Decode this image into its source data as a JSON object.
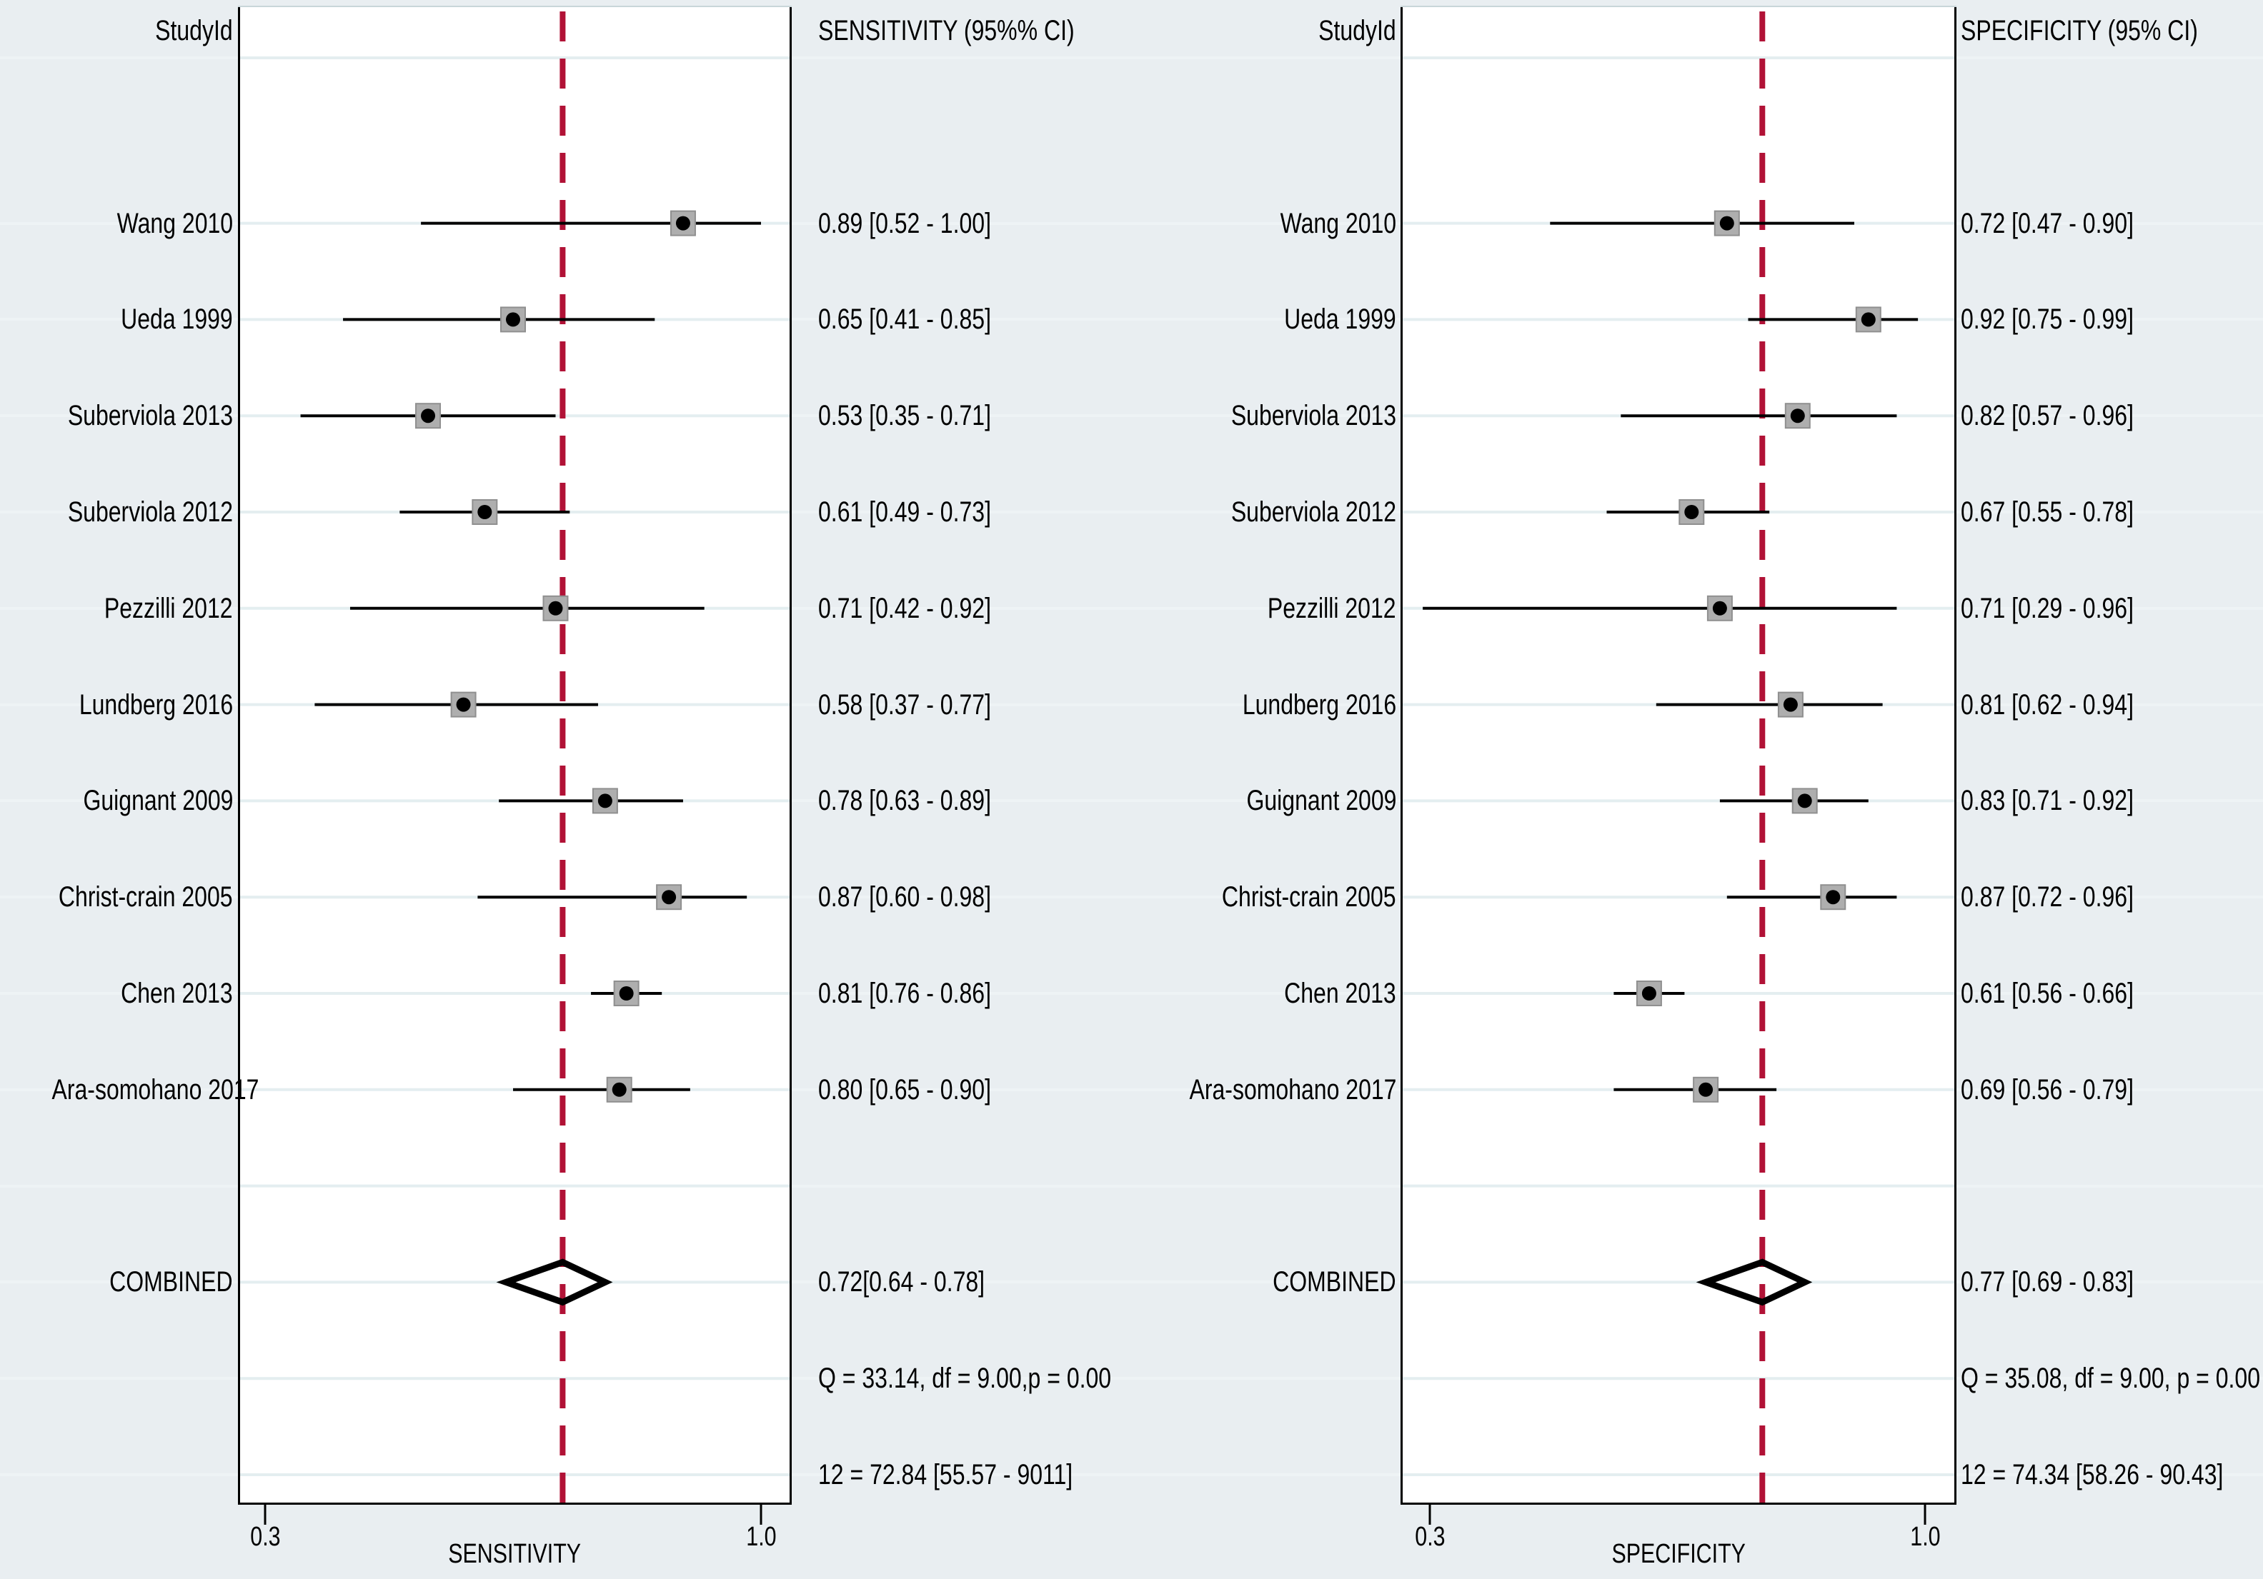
{
  "figure": {
    "background_color": "#e9eef1",
    "ref_line_color": "#b11236",
    "marker_fill_color": "#aeaeae",
    "marker_dot_color": "#000000",
    "gridline_color": "#e4eef0"
  },
  "chart_data": [
    {
      "type": "forest",
      "panel": "sensitivity",
      "study_col_header": "StudyId",
      "value_col_header": "SENSITIVITY (95%% CI)",
      "axis_label": "SENSITIVITY",
      "axis_ticks": [
        {
          "value": 0.3,
          "label": "0.3"
        },
        {
          "value": 1.0,
          "label": "1.0"
        }
      ],
      "axis_range_shown": [
        0.3,
        1.0
      ],
      "ref_line_value": 0.72,
      "studies": [
        {
          "label": "Wang 2010",
          "est": 0.89,
          "lo": 0.52,
          "hi": 1.0,
          "ci_text": "0.89 [0.52 - 1.00]"
        },
        {
          "label": "Ueda 1999",
          "est": 0.65,
          "lo": 0.41,
          "hi": 0.85,
          "ci_text": "0.65 [0.41 - 0.85]"
        },
        {
          "label": "Suberviola 2013",
          "est": 0.53,
          "lo": 0.35,
          "hi": 0.71,
          "ci_text": "0.53 [0.35 - 0.71]"
        },
        {
          "label": "Suberviola 2012",
          "est": 0.61,
          "lo": 0.49,
          "hi": 0.73,
          "ci_text": "0.61 [0.49 - 0.73]"
        },
        {
          "label": "Pezzilli 2012",
          "est": 0.71,
          "lo": 0.42,
          "hi": 0.92,
          "ci_text": "0.71 [0.42 - 0.92]"
        },
        {
          "label": "Lundberg 2016",
          "est": 0.58,
          "lo": 0.37,
          "hi": 0.77,
          "ci_text": "0.58 [0.37 - 0.77]"
        },
        {
          "label": "Guignant 2009",
          "est": 0.78,
          "lo": 0.63,
          "hi": 0.89,
          "ci_text": "0.78 [0.63 - 0.89]"
        },
        {
          "label": "Christ-crain 2005",
          "est": 0.87,
          "lo": 0.6,
          "hi": 0.98,
          "ci_text": "0.87 [0.60 - 0.98]"
        },
        {
          "label": "Chen 2013",
          "est": 0.81,
          "lo": 0.76,
          "hi": 0.86,
          "ci_text": "0.81 [0.76 - 0.86]"
        },
        {
          "label": "Ara-somohano 2017",
          "est": 0.8,
          "lo": 0.65,
          "hi": 0.9,
          "ci_text": "0.80 [0.65 - 0.90]"
        }
      ],
      "combined": {
        "label": "COMBINED",
        "est": 0.72,
        "lo": 0.64,
        "hi": 0.78,
        "ci_text": "0.72[0.64 - 0.78]"
      },
      "heterogeneity_text": "Q = 33.14, df = 9.00,p = 0.00",
      "i2_text": "12 = 72.84 [55.57 - 9011]"
    },
    {
      "type": "forest",
      "panel": "specificity",
      "study_col_header": "StudyId",
      "value_col_header": "SPECIFICITY (95% CI)",
      "axis_label": "SPECIFICITY",
      "axis_ticks": [
        {
          "value": 0.3,
          "label": "0.3"
        },
        {
          "value": 1.0,
          "label": "1.0"
        }
      ],
      "axis_range_shown": [
        0.3,
        1.0
      ],
      "ref_line_value": 0.77,
      "studies": [
        {
          "label": "Wang 2010",
          "est": 0.72,
          "lo": 0.47,
          "hi": 0.9,
          "ci_text": "0.72 [0.47 - 0.90]"
        },
        {
          "label": "Ueda 1999",
          "est": 0.92,
          "lo": 0.75,
          "hi": 0.99,
          "ci_text": "0.92 [0.75 - 0.99]"
        },
        {
          "label": "Suberviola 2013",
          "est": 0.82,
          "lo": 0.57,
          "hi": 0.96,
          "ci_text": "0.82 [0.57 - 0.96]"
        },
        {
          "label": "Suberviola 2012",
          "est": 0.67,
          "lo": 0.55,
          "hi": 0.78,
          "ci_text": "0.67 [0.55 - 0.78]"
        },
        {
          "label": "Pezzilli 2012",
          "est": 0.71,
          "lo": 0.29,
          "hi": 0.96,
          "ci_text": "0.71 [0.29 - 0.96]"
        },
        {
          "label": "Lundberg 2016",
          "est": 0.81,
          "lo": 0.62,
          "hi": 0.94,
          "ci_text": "0.81 [0.62 - 0.94]"
        },
        {
          "label": "Guignant 2009",
          "est": 0.83,
          "lo": 0.71,
          "hi": 0.92,
          "ci_text": "0.83 [0.71 - 0.92]"
        },
        {
          "label": "Christ-crain 2005",
          "est": 0.87,
          "lo": 0.72,
          "hi": 0.96,
          "ci_text": "0.87 [0.72 - 0.96]"
        },
        {
          "label": "Chen 2013",
          "est": 0.61,
          "lo": 0.56,
          "hi": 0.66,
          "ci_text": "0.61 [0.56 - 0.66]"
        },
        {
          "label": "Ara-somohano 2017",
          "est": 0.69,
          "lo": 0.56,
          "hi": 0.79,
          "ci_text": "0.69 [0.56 - 0.79]"
        }
      ],
      "combined": {
        "label": "COMBINED",
        "est": 0.77,
        "lo": 0.69,
        "hi": 0.83,
        "ci_text": "0.77 [0.69 - 0.83]"
      },
      "heterogeneity_text": "Q = 35.08, df = 9.00, p = 0.00",
      "i2_text": "12 = 74.34 [58.26 - 90.43]"
    }
  ]
}
